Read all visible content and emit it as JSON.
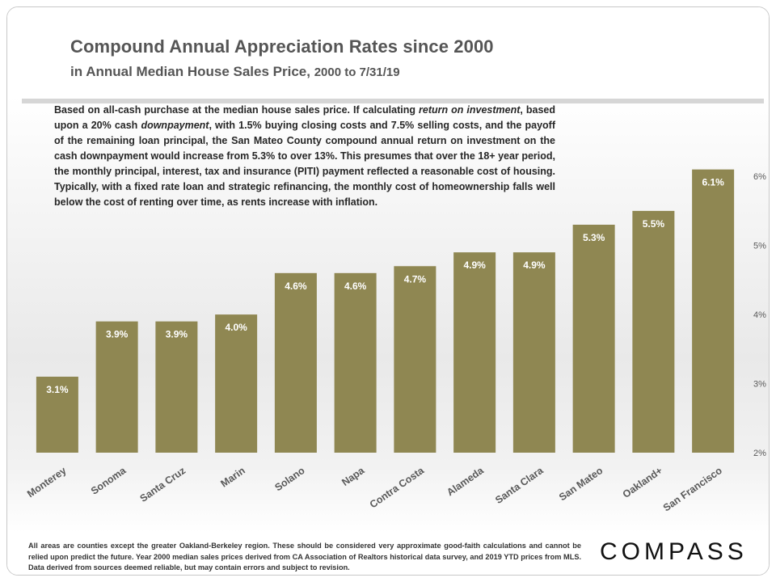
{
  "header": {
    "title": "Compound Annual Appreciation Rates since 2000",
    "subtitle_main": "in Annual Median House Sales Price,",
    "subtitle_range": "2000 to 7/31/19"
  },
  "note": {
    "p1": "Based on all-cash purchase at the median house sales price. If calculating",
    "em1": "return on investment",
    "p2": ", based upon a 20% cash",
    "em2": "downpayment",
    "p3": ", with 1.5% buying closing costs and 7.5% selling costs, and the payoff of the remaining loan principal, the San Mateo County compound annual return on investment on the cash downpayment would increase from 5.3% to over 13%. This presumes that over the 18+ year period, the monthly principal, interest, tax and insurance (PITI) payment reflected a reasonable cost of housing. Typically, with a fixed rate loan and strategic refinancing, the monthly cost of homeownership falls well below the cost of renting over time, as rents increase with inflation."
  },
  "chart_data": {
    "type": "bar",
    "title": "Compound Annual Appreciation Rates since 2000",
    "categories": [
      "Monterey",
      "Sonoma",
      "Santa Cruz",
      "Marin",
      "Solano",
      "Napa",
      "Contra Costa",
      "Alameda",
      "Santa Clara",
      "San Mateo",
      "Oakland+",
      "San Francisco"
    ],
    "values": [
      3.1,
      3.9,
      3.9,
      4.0,
      4.6,
      4.6,
      4.7,
      4.9,
      4.9,
      5.3,
      5.5,
      6.1
    ],
    "data_labels": [
      "3.1%",
      "3.9%",
      "3.9%",
      "4.0%",
      "4.6%",
      "4.6%",
      "4.7%",
      "4.9%",
      "4.9%",
      "5.3%",
      "5.5%",
      "6.1%"
    ],
    "yticks": [
      2,
      3,
      4,
      5,
      6
    ],
    "ytick_labels": [
      "2%",
      "3%",
      "4%",
      "5%",
      "6%"
    ],
    "ylim": [
      2,
      6.4
    ],
    "yaxis_side": "right",
    "grid": false,
    "bar_color": "#8f8752",
    "label_color": "#ffffff"
  },
  "footer": {
    "footnote": "All areas are counties except the greater Oakland-Berkeley region. These should be considered very approximate good-faith calculations and cannot be relied upon predict the future. Year 2000 median sales prices derived from CA Association of Realtors historical data survey, and 2019 YTD prices from MLS. Data derived from sources deemed reliable, but may contain errors and subject to revision.",
    "logo": "COMPASS"
  }
}
